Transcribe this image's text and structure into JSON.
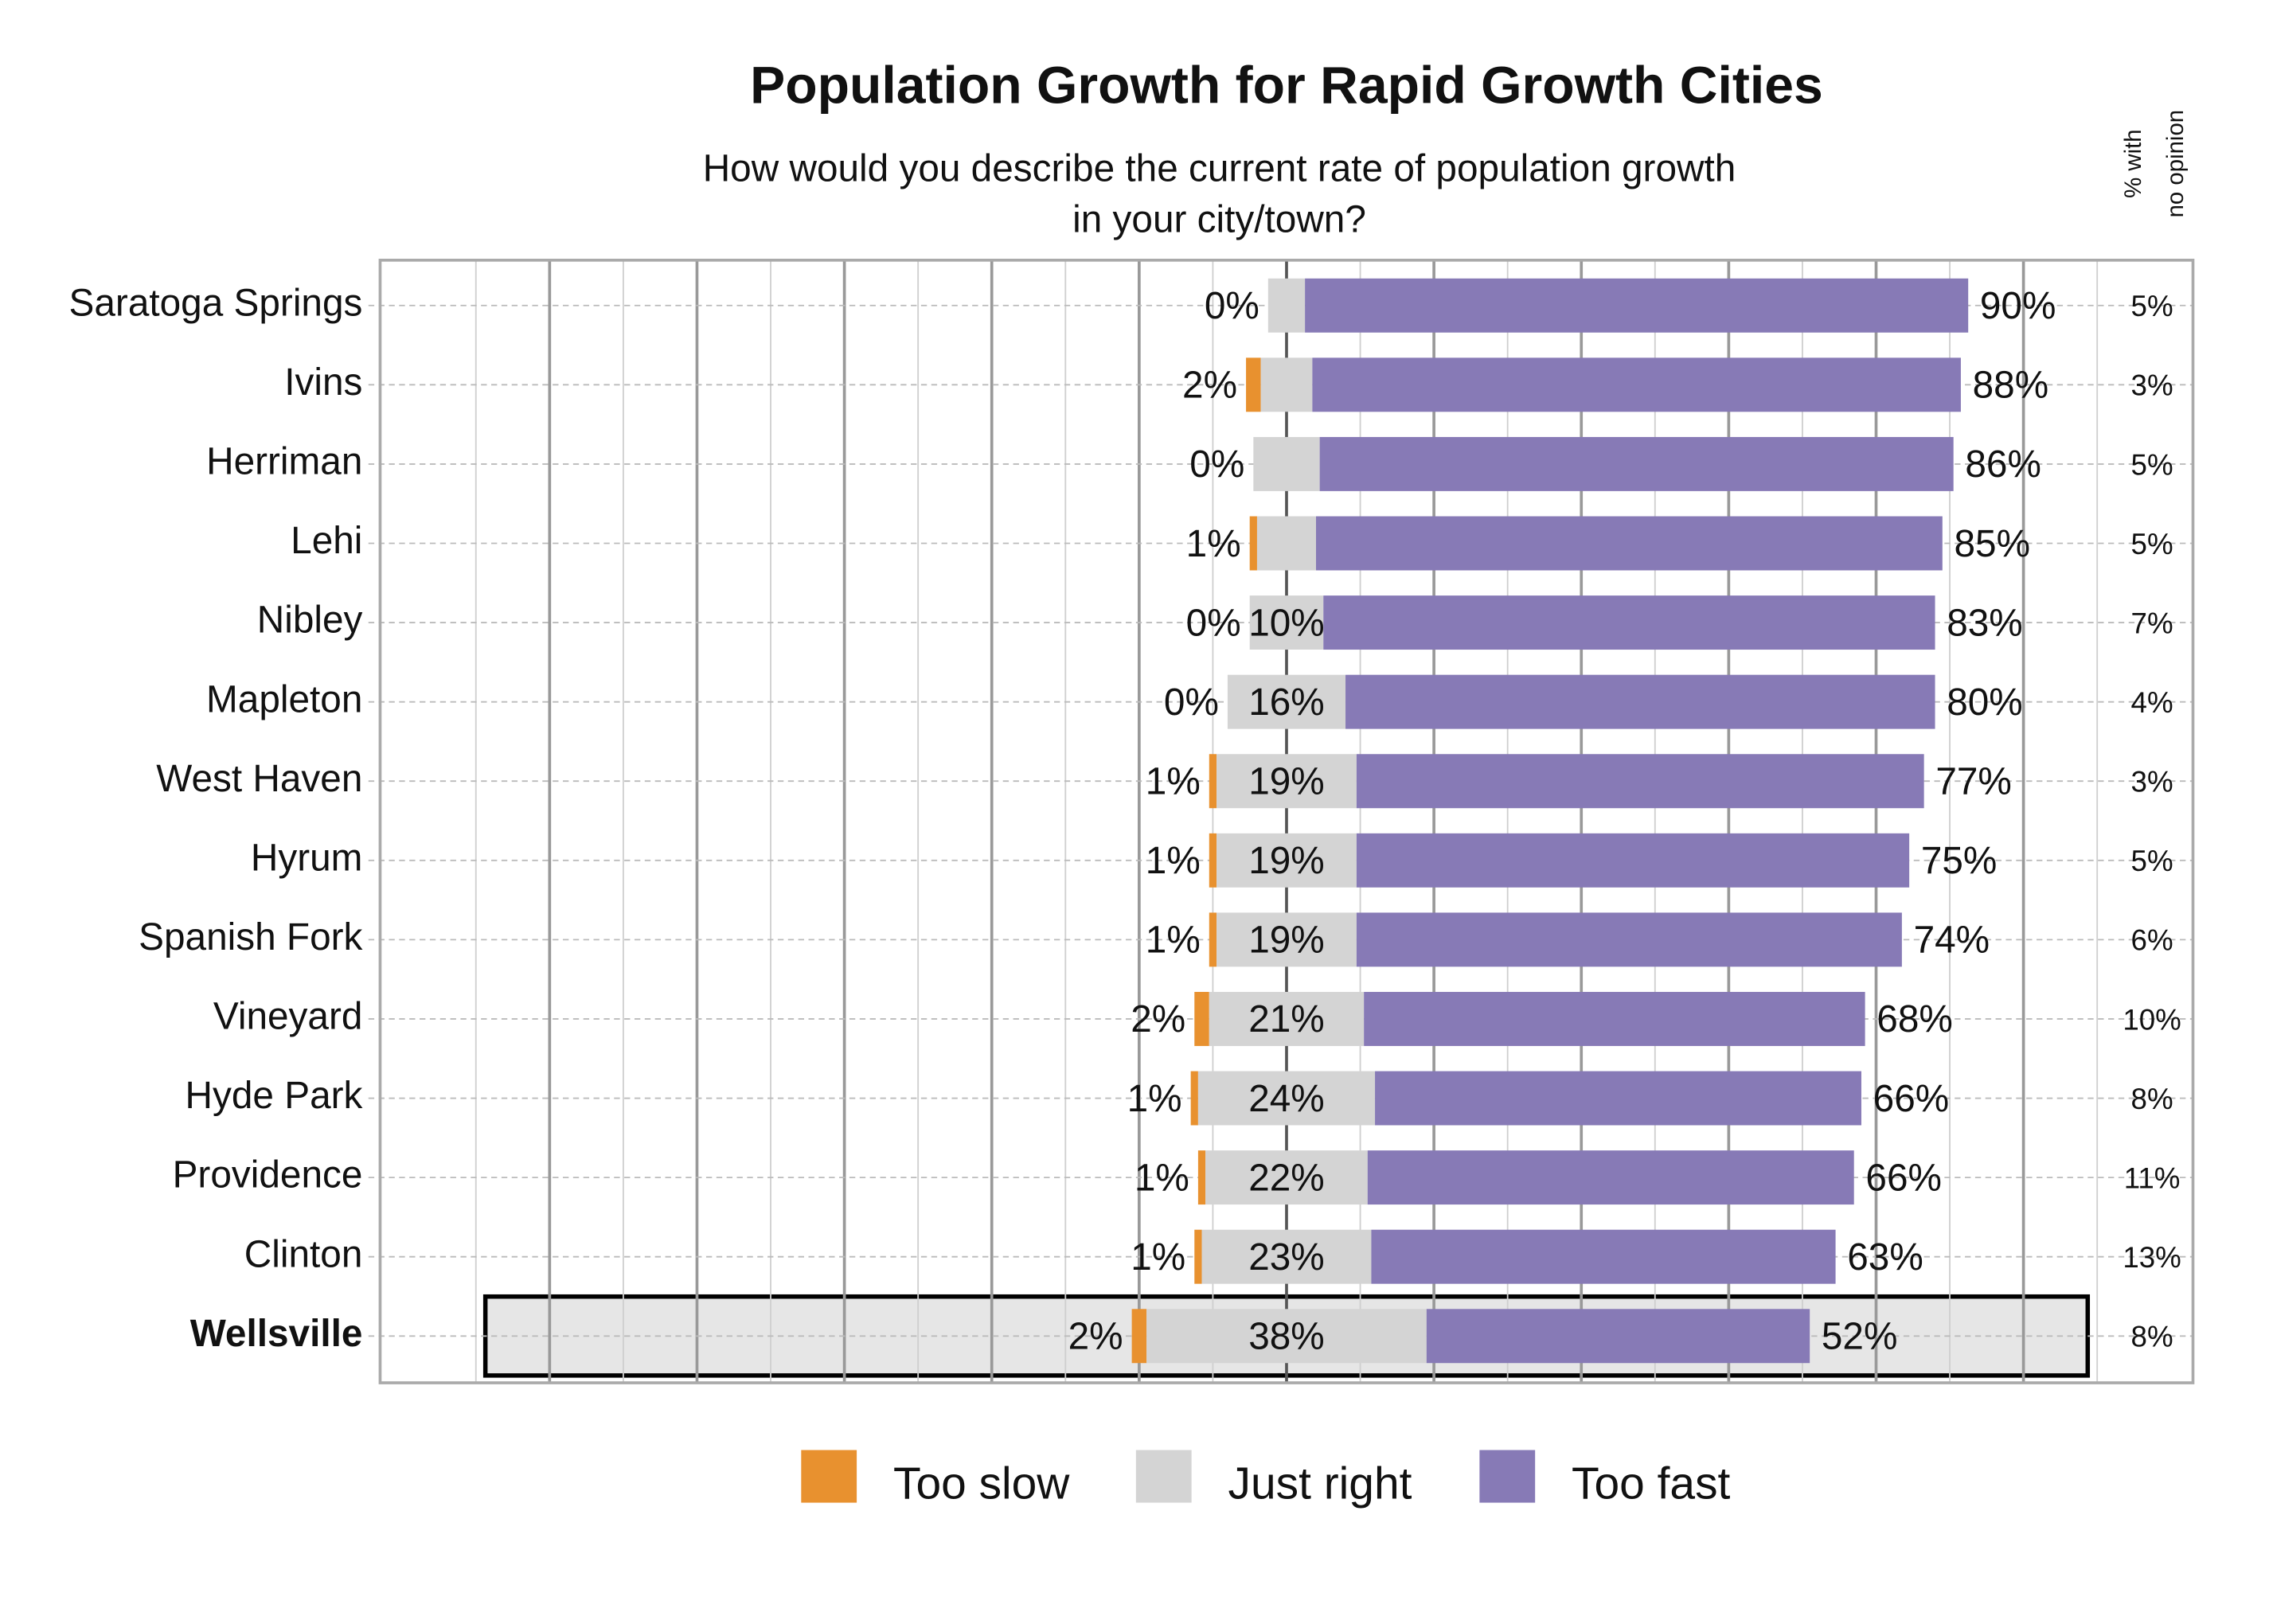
{
  "chart_data": {
    "type": "diverging-bar",
    "title": "Population Growth for Rapid Growth Cities",
    "subtitle": [
      "How would you describe the current rate of population growth",
      "in your city/town?"
    ],
    "no_opinion_header": [
      "% with",
      "no opinion"
    ],
    "categories": [
      "Saratoga Springs",
      "Ivins",
      "Herriman",
      "Lehi",
      "Nibley",
      "Mapleton",
      "West Haven",
      "Hyrum",
      "Spanish Fork",
      "Vineyard",
      "Hyde Park",
      "Providence",
      "Clinton",
      "Wellsville"
    ],
    "highlight_index": 13,
    "series": [
      {
        "name": "Too slow",
        "color": "#e8912f",
        "side": "left",
        "values": [
          0,
          2,
          0,
          1,
          0,
          0,
          1,
          1,
          1,
          2,
          1,
          1,
          1,
          2
        ],
        "value_labels": [
          "0%",
          "2%",
          "0%",
          "1%",
          "0%",
          "0%",
          "1%",
          "1%",
          "1%",
          "2%",
          "1%",
          "1%",
          "1%",
          "2%"
        ]
      },
      {
        "name": "Just right",
        "color": "#d4d4d4",
        "side": "center",
        "values": [
          5,
          7,
          9,
          8,
          10,
          16,
          19,
          19,
          19,
          21,
          24,
          22,
          23,
          38
        ],
        "value_labels": [
          null,
          null,
          null,
          null,
          "10%",
          "16%",
          "19%",
          "19%",
          "19%",
          "21%",
          "24%",
          "22%",
          "23%",
          "38%"
        ]
      },
      {
        "name": "Too fast",
        "color": "#877ab6",
        "side": "right",
        "values": [
          90,
          88,
          86,
          85,
          83,
          80,
          77,
          75,
          74,
          68,
          66,
          66,
          63,
          52
        ],
        "value_labels": [
          "90%",
          "88%",
          "86%",
          "85%",
          "83%",
          "80%",
          "77%",
          "75%",
          "74%",
          "68%",
          "66%",
          "66%",
          "63%",
          "52%"
        ]
      }
    ],
    "no_opinion": {
      "values": [
        5,
        3,
        5,
        5,
        7,
        4,
        3,
        5,
        6,
        10,
        8,
        11,
        13,
        8
      ],
      "value_labels": [
        "5%",
        "3%",
        "5%",
        "5%",
        "7%",
        "4%",
        "3%",
        "5%",
        "6%",
        "10%",
        "8%",
        "11%",
        "13%",
        "8%"
      ]
    },
    "xlim": [
      -123,
      123
    ],
    "xticks": [
      -100,
      -80,
      -60,
      -40,
      -20,
      0,
      20,
      40,
      60,
      80,
      100
    ],
    "minor_xticks": [
      -110,
      -90,
      -70,
      -50,
      -30,
      -10,
      10,
      30,
      50,
      70,
      90,
      110
    ],
    "grid": true
  }
}
